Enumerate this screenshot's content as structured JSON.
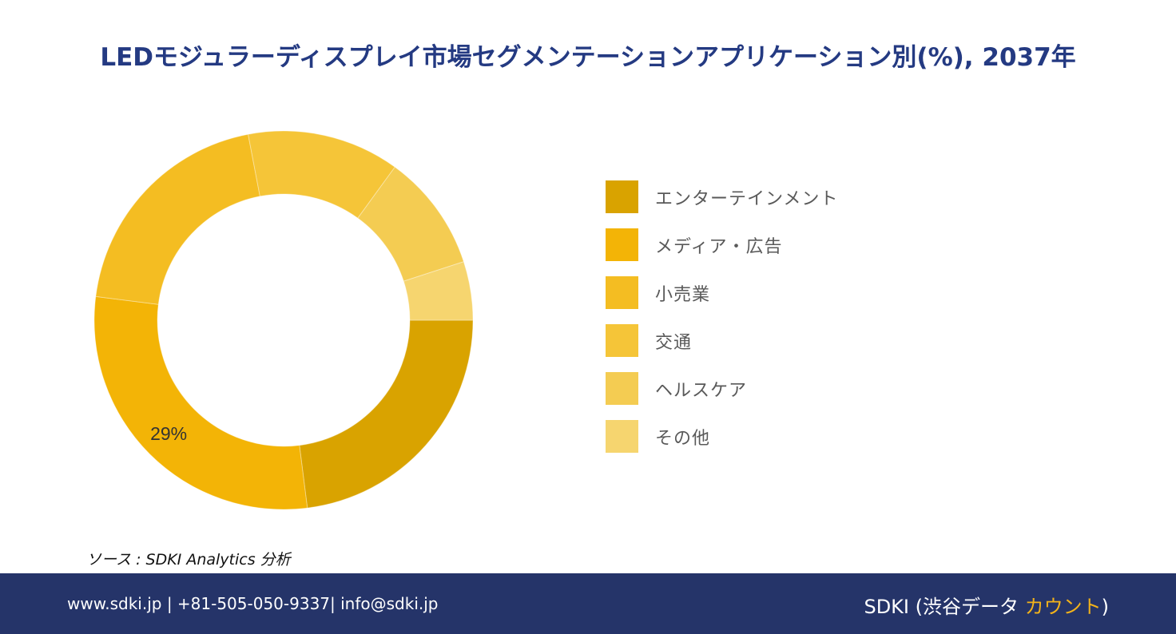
{
  "title": "LEDモジュラーディスプレイ市場セグメンテーションアプリケーション別(%), 2037年",
  "chart_data": {
    "type": "pie",
    "title": "LEDモジュラーディスプレイ市場セグメンテーションアプリケーション別(%), 2037年",
    "donut": true,
    "legend_position": "right",
    "categories": [
      "エンターテインメント",
      "メディア・広告",
      "小売業",
      "交通",
      "ヘルスケア",
      "その他"
    ],
    "values": [
      23,
      29,
      20,
      13,
      10,
      5
    ],
    "colors": [
      "#d9a300",
      "#f3b406",
      "#f4bd22",
      "#f5c538",
      "#f4cc52",
      "#f6d56f"
    ],
    "data_labels": [
      {
        "category": "メディア・広告",
        "text": "29%"
      }
    ]
  },
  "source": "ソース : SDKI Analytics 分析",
  "footer": {
    "contact": "www.sdki.jp | +81-505-050-9337| info@sdki.jp",
    "brand_prefix": "SDKI (渋谷データ ",
    "brand_accent": "カウント",
    "brand_suffix": ")"
  }
}
